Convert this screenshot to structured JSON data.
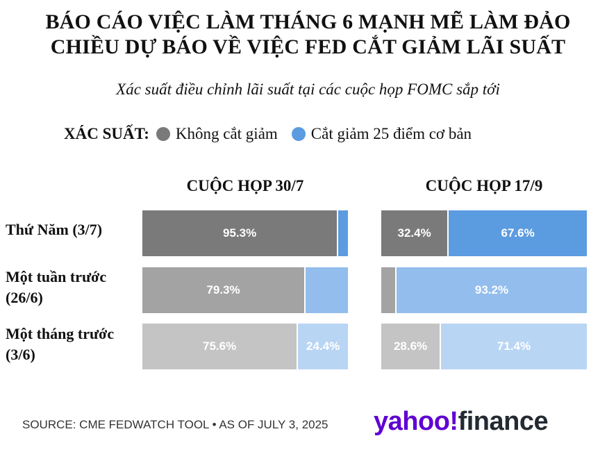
{
  "title_line1": "BÁO CÁO VIỆC LÀM THÁNG 6 MẠNH MẼ LÀM ĐẢO",
  "title_line2": "CHIỀU DỰ BÁO VỀ VIỆC FED CẮT GIẢM LÃI SUẤT",
  "subtitle": "Xác suất điều chỉnh lãi suất tại các cuộc họp FOMC sắp tới",
  "legend": {
    "label": "XÁC SUẤT:",
    "items": [
      {
        "name": "Không cắt giảm",
        "color": "#7a7a7a"
      },
      {
        "name": "Cắt giảm 25 điểm cơ bản",
        "color": "#5b9be0"
      }
    ]
  },
  "footer": {
    "source": "SOURCE: CME FEDWATCH TOOL • AS OF JULY 3, 2025",
    "logo_yahoo": "yahoo!",
    "logo_finance": "finance"
  },
  "chart_data": {
    "type": "bar",
    "stacked": true,
    "orientation": "horizontal",
    "categories": [
      "Thứ Năm (3/7)",
      "Một tuần trước (26/6)",
      "Một tháng trước (3/6)"
    ],
    "category_lines": [
      [
        "Thứ Năm (3/7)"
      ],
      [
        "Một tuần trước",
        "(26/6)"
      ],
      [
        "Một tháng trước",
        "(3/6)"
      ]
    ],
    "xlim": [
      0,
      100
    ],
    "panels": [
      {
        "title": "CUỘC HỌP 30/7",
        "series": [
          {
            "name": "Không cắt giảm",
            "values": [
              95.3,
              79.3,
              75.6
            ],
            "labels": [
              "95.3%",
              "79.3%",
              "75.6%"
            ]
          },
          {
            "name": "Cắt giảm 25 điểm cơ bản",
            "values": [
              4.7,
              20.7,
              24.4
            ],
            "labels": [
              "",
              "",
              "24.4%"
            ]
          }
        ]
      },
      {
        "title": "CUỘC HỌP 17/9",
        "series": [
          {
            "name": "Không cắt giảm",
            "values": [
              32.4,
              6.8,
              28.6
            ],
            "labels": [
              "32.4%",
              "",
              "28.6%"
            ]
          },
          {
            "name": "Cắt giảm 25 điểm cơ bản",
            "values": [
              67.6,
              93.2,
              71.4
            ],
            "labels": [
              "67.6%",
              "93.2%",
              "71.4%"
            ]
          }
        ]
      }
    ],
    "row_colors": [
      [
        "#7a7a7a",
        "#5b9be0"
      ],
      [
        "#a3a3a3",
        "#93bdec"
      ],
      [
        "#c4c4c4",
        "#b9d5f4"
      ]
    ]
  }
}
